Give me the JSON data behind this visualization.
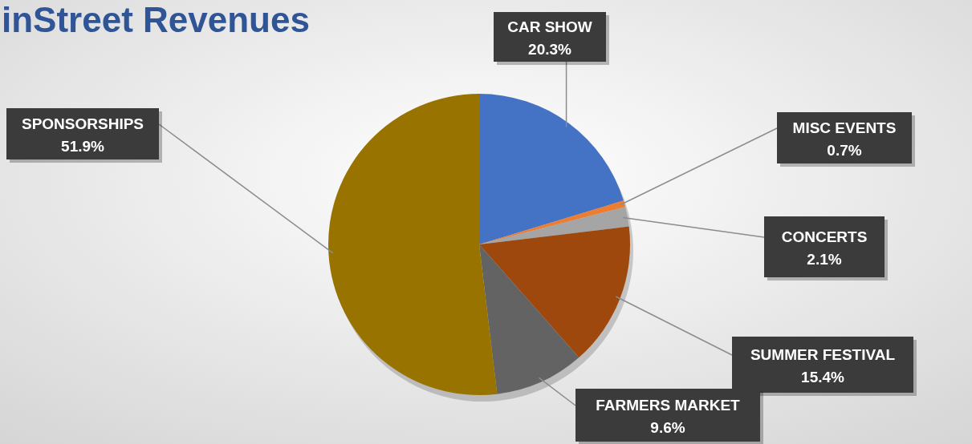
{
  "chart_data": {
    "type": "pie",
    "title": "inStreet Revenues",
    "categories": [
      "CAR SHOW",
      "MISC EVENTS",
      "CONCERTS",
      "SUMMER FESTIVAL",
      "FARMERS MARKET",
      "SPONSORSHIPS"
    ],
    "values": [
      20.3,
      0.7,
      2.1,
      15.4,
      9.6,
      51.9
    ],
    "value_labels": [
      "20.3%",
      "0.7%",
      "2.1%",
      "15.4%",
      "9.6%",
      "51.9%"
    ],
    "colors": [
      "#4472c4",
      "#ed7d31",
      "#a5a5a5",
      "#9e480e",
      "#636363",
      "#997300"
    ]
  }
}
